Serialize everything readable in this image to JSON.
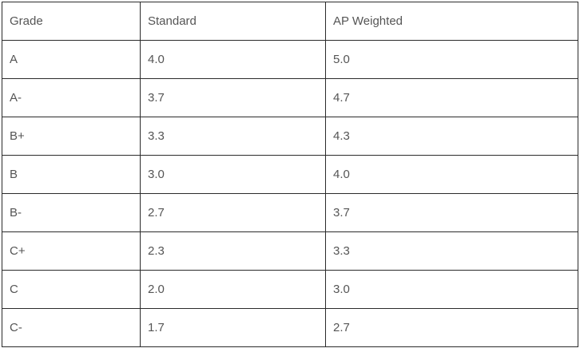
{
  "table": {
    "headers": [
      "Grade",
      "Standard",
      "AP Weighted"
    ],
    "rows": [
      [
        "A",
        "4.0",
        "5.0"
      ],
      [
        "A-",
        "3.7",
        "4.7"
      ],
      [
        "B+",
        "3.3",
        "4.3"
      ],
      [
        "B",
        "3.0",
        "4.0"
      ],
      [
        "B-",
        "2.7",
        "3.7"
      ],
      [
        "C+",
        "2.3",
        "3.3"
      ],
      [
        "C",
        "2.0",
        "3.0"
      ],
      [
        "C-",
        "1.7",
        "2.7"
      ]
    ]
  }
}
